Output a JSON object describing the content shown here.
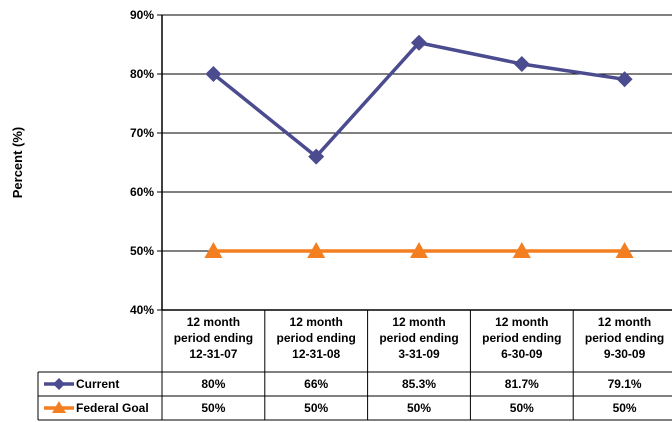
{
  "chart_data": {
    "type": "line",
    "ylabel": "Percent (%)",
    "ylim": [
      40,
      90
    ],
    "yticks": [
      "40%",
      "50%",
      "60%",
      "70%",
      "80%",
      "90%"
    ],
    "grid": true,
    "categories": [
      [
        "12 month",
        "period ending",
        "12-31-07"
      ],
      [
        "12 month",
        "period ending",
        "12-31-08"
      ],
      [
        "12 month",
        "period ending",
        "3-31-09"
      ],
      [
        "12 month",
        "period ending",
        "6-30-09"
      ],
      [
        "12 month",
        "period ending",
        "9-30-09"
      ]
    ],
    "series": [
      {
        "name": "Current",
        "values": [
          80,
          66,
          85.3,
          81.7,
          79.1
        ],
        "labels": [
          "80%",
          "66%",
          "85.3%",
          "81.7%",
          "79.1%"
        ],
        "color": "#4B4B8F",
        "marker": "diamond"
      },
      {
        "name": "Federal Goal",
        "values": [
          50,
          50,
          50,
          50,
          50
        ],
        "labels": [
          "50%",
          "50%",
          "50%",
          "50%",
          "50%"
        ],
        "color": "#F47F20",
        "marker": "triangle"
      }
    ]
  }
}
